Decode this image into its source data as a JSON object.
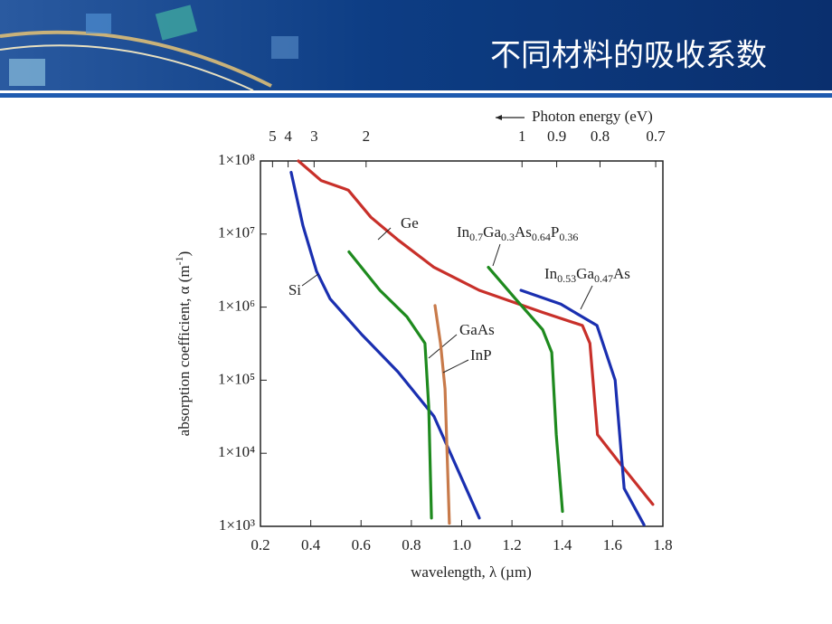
{
  "title": "不同材料的吸收系数",
  "chart_data": {
    "type": "line",
    "xlabel": "wavelength, λ (µm)",
    "ylabel": "absorption coefficient, α (m-1)",
    "x2label": "Photon energy (eV)",
    "xlim": [
      0.2,
      1.8
    ],
    "xticks": [
      0.2,
      0.4,
      0.6,
      0.8,
      {
        "value": 1,
        "label": "1.0"
      },
      1.2,
      1.4,
      1.6,
      1.8
    ],
    "x2ticks": [
      5,
      4,
      3,
      2,
      1,
      0.9,
      0.8,
      0.7
    ],
    "ylim": [
      1000,
      100000000
    ],
    "yscale": "log",
    "yticks": [
      {
        "value": 1000,
        "label": "1×10³"
      },
      {
        "value": 10000,
        "label": "1×10⁴"
      },
      {
        "value": 100000,
        "label": "1×10⁵"
      },
      {
        "value": 1000000,
        "label": "1×10⁶"
      },
      {
        "value": 10000000,
        "label": "1×10⁷"
      },
      {
        "value": 100000000,
        "label": "1×10⁸"
      }
    ],
    "series": [
      {
        "name": "Ge",
        "color": "#c8302a",
        "x": [
          0.351,
          0.441,
          0.549,
          0.639,
          0.747,
          0.89,
          1.07,
          1.32,
          1.48,
          1.51,
          1.54,
          1.65,
          1.76
        ],
        "values": [
          100000000,
          54000000,
          40000000,
          17000000,
          8300000,
          3500000,
          1700000,
          850000,
          560000,
          320000,
          18000,
          5900,
          2000
        ]
      },
      {
        "name": "Si",
        "color": "#1a2fb0",
        "x": [
          0.322,
          0.369,
          0.423,
          0.477,
          0.603,
          0.747,
          0.89,
          1.07
        ],
        "values": [
          70000000,
          13000000,
          3100000,
          1300000,
          420000,
          130000,
          32000,
          1300
        ]
      },
      {
        "name": "GaAs",
        "color": "#1e8a1e",
        "x": [
          0.552,
          0.675,
          0.782,
          0.854,
          0.869,
          0.88
        ],
        "values": [
          5700000,
          1700000,
          740000,
          320000,
          43000,
          1300
        ]
      },
      {
        "name": "InP",
        "color": "#c87a4a",
        "x": [
          0.894,
          0.916,
          0.934,
          0.951
        ],
        "values": [
          1050000,
          320000,
          76000,
          1100
        ]
      },
      {
        "name": "In0.7Ga0.3As0.64P0.36",
        "color": "#1e8a1e",
        "x": [
          1.106,
          1.214,
          1.322,
          1.358,
          1.376,
          1.401
        ],
        "values": [
          3500000,
          1300000,
          490000,
          240000,
          18000,
          1600
        ]
      },
      {
        "name": "In0.53Ga0.47As",
        "color": "#1a2fb0",
        "x": [
          1.236,
          1.394,
          1.538,
          1.61,
          1.646,
          1.725
        ],
        "values": [
          1700000,
          1100000,
          560000,
          100000,
          3300,
          1050
        ]
      }
    ]
  }
}
